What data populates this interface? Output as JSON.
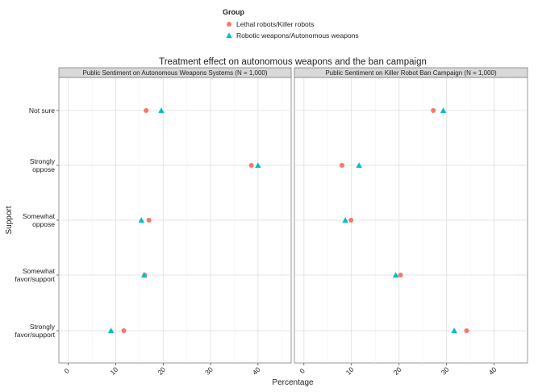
{
  "chart_data": {
    "type": "scatter",
    "title": "Treatment effect on autonomous weapons and the ban campaign",
    "xlabel": "Percentage",
    "ylabel": "Support",
    "xlim": [
      -2,
      47
    ],
    "x_ticks": [
      0,
      10,
      20,
      30,
      40
    ],
    "grid": true,
    "legend": {
      "title": "Group",
      "placement": "top",
      "entries": [
        {
          "name": "Lethal robots/Killer robots",
          "marker": "circle",
          "color": "#F8766D"
        },
        {
          "name": "Robotic weapons/Autonomous weapons",
          "marker": "triangle",
          "color": "#00BFC4"
        }
      ]
    },
    "categories": [
      [
        "Not sure"
      ],
      [
        "Strongly",
        "oppose"
      ],
      [
        "Somewhat",
        "oppose"
      ],
      [
        "Somewhat",
        "favor/support"
      ],
      [
        "Strongly",
        "favor/support"
      ]
    ],
    "panels": [
      {
        "title": "Public Sentiment on Autonomous Weapons Systems (N = 1,000)",
        "series": [
          {
            "name": "Lethal robots/Killer robots",
            "values": [
              16.4,
              38.6,
              17.0,
              16.1,
              11.7
            ]
          },
          {
            "name": "Robotic weapons/Autonomous weapons",
            "values": [
              19.6,
              40.0,
              15.4,
              16.0,
              9.0
            ]
          }
        ]
      },
      {
        "title": "Public Sentiment on Killer Robot Ban Campaign (N = 1,000)",
        "series": [
          {
            "name": "Lethal robots/Killer robots",
            "values": [
              27.2,
              8.0,
              9.9,
              20.3,
              34.2
            ]
          },
          {
            "name": "Robotic weapons/Autonomous weapons",
            "values": [
              29.3,
              11.6,
              8.7,
              19.3,
              31.6
            ]
          }
        ]
      }
    ]
  }
}
